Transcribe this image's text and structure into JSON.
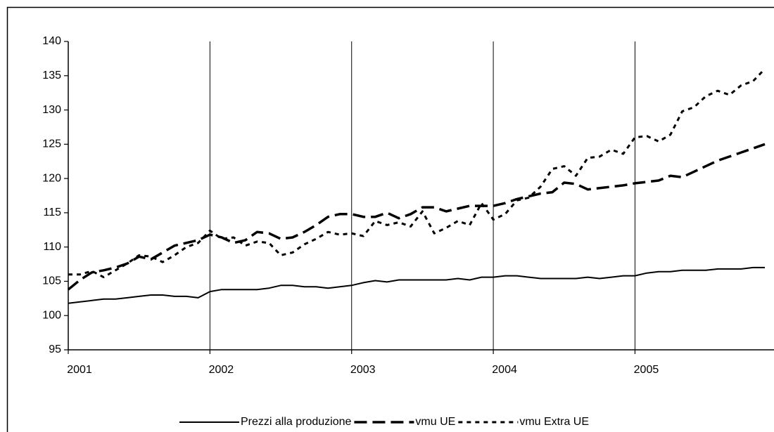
{
  "chart_data": {
    "type": "line",
    "categories": [
      "2001",
      null,
      null,
      null,
      null,
      null,
      null,
      null,
      null,
      null,
      null,
      null,
      "2002",
      null,
      null,
      null,
      null,
      null,
      null,
      null,
      null,
      null,
      null,
      null,
      "2003",
      null,
      null,
      null,
      null,
      null,
      null,
      null,
      null,
      null,
      null,
      null,
      "2004",
      null,
      null,
      null,
      null,
      null,
      null,
      null,
      null,
      null,
      null,
      null,
      "2005",
      null,
      null,
      null,
      null,
      null,
      null,
      null,
      null,
      null,
      null,
      null
    ],
    "series": [
      {
        "name": "Prezzi alla produzione",
        "color": "#000000",
        "style": "solid",
        "values": [
          101.8,
          102,
          102.2,
          102.4,
          102.4,
          102.6,
          102.8,
          103,
          103,
          102.8,
          102.8,
          102.6,
          103.5,
          103.8,
          103.8,
          103.8,
          103.8,
          104,
          104.4,
          104.4,
          104.2,
          104.2,
          104,
          104.2,
          104.4,
          104.8,
          105.1,
          104.9,
          105.2,
          105.2,
          105.2,
          105.2,
          105.2,
          105.4,
          105.2,
          105.6,
          105.6,
          105.8,
          105.8,
          105.6,
          105.4,
          105.4,
          105.4,
          105.4,
          105.6,
          105.4,
          105.6,
          105.8,
          105.8,
          106.2,
          106.4,
          106.4,
          106.6,
          106.6,
          106.6,
          106.8,
          106.8,
          106.8,
          107,
          107
        ]
      },
      {
        "name": "vmu UE",
        "color": "#000000",
        "style": "dashed",
        "values": [
          103.8,
          105.2,
          106.3,
          106.6,
          107,
          107.6,
          108.6,
          108.2,
          109.2,
          110.2,
          110.6,
          111,
          111.8,
          111.4,
          110.6,
          111,
          112.2,
          112,
          111.2,
          111.4,
          112.2,
          113.2,
          114.4,
          114.8,
          114.8,
          114.4,
          114.4,
          115,
          114.2,
          114.8,
          115.8,
          115.8,
          115.2,
          115.6,
          116,
          116,
          116,
          116.4,
          117,
          117.4,
          117.8,
          118,
          119.4,
          119.2,
          118.4,
          118.6,
          118.8,
          119,
          119.3,
          119.5,
          119.7,
          120.4,
          120.2,
          121,
          121.8,
          122.6,
          123.2,
          123.8,
          124.4,
          125
        ]
      },
      {
        "name": "vmu Extra UE",
        "color": "#000000",
        "style": "dotted",
        "values": [
          106,
          106,
          106.5,
          105.6,
          106.6,
          107.6,
          108.8,
          108.6,
          107.8,
          108.8,
          110,
          110.6,
          112.4,
          111.2,
          111.4,
          110.2,
          110.8,
          110.6,
          108.8,
          109.2,
          110.4,
          111.2,
          112.2,
          111.8,
          112,
          111.6,
          113.8,
          113.2,
          113.6,
          113,
          115.2,
          112,
          112.8,
          113.8,
          113.2,
          116.4,
          114,
          114.8,
          116.8,
          117.2,
          118.8,
          121.4,
          121.8,
          120.4,
          123,
          123.2,
          124.2,
          123.6,
          126,
          126.2,
          125.4,
          126.4,
          129.8,
          130.4,
          132,
          132.8,
          132.2,
          133.6,
          134.2,
          136
        ]
      }
    ],
    "ylim": [
      95,
      140
    ],
    "yticks": [
      95,
      100,
      105,
      110,
      115,
      120,
      125,
      130,
      135,
      140
    ],
    "grid": "x",
    "legend": "bottom"
  }
}
